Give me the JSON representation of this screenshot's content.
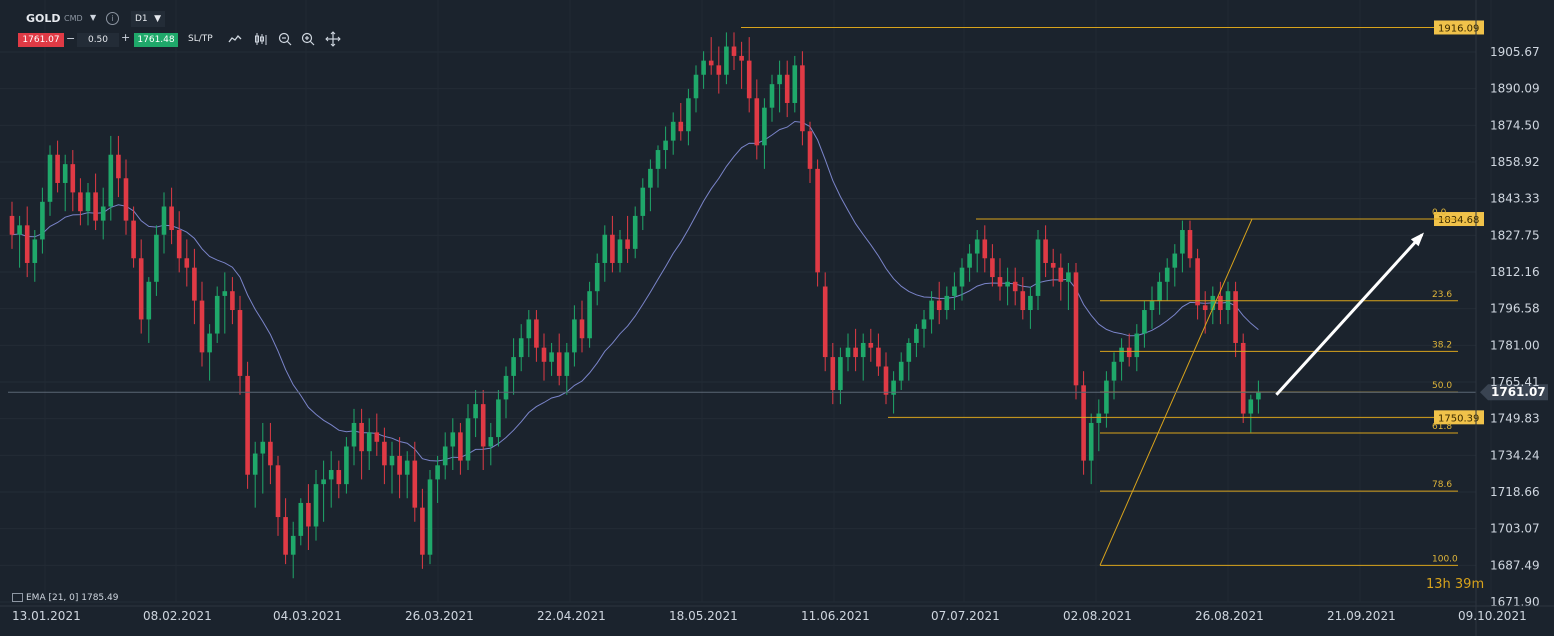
{
  "header": {
    "symbol": "GOLD",
    "product_type": "CMD",
    "timeframe": "D1",
    "sell_price": "1761.07",
    "spread": "0.50",
    "buy_price": "1761.48",
    "sltp_label": "SL/TP",
    "tools": [
      "line-chart-icon",
      "candles-icon",
      "zoom-out-icon",
      "zoom-in-icon",
      "move-icon"
    ]
  },
  "indicator": {
    "label": "EMA [21, 0] 1785.49"
  },
  "countdown": "13h 39m",
  "colors": {
    "up": "#1fa86a",
    "down": "#e03a45",
    "ema": "#7a84c9",
    "fib": "#d8a31c",
    "arrow": "#ffffff",
    "bg": "#1b232d"
  },
  "chart_data": {
    "type": "candlestick",
    "symbol": "GOLD",
    "timeframe": "D1",
    "y_ticks": [
      "1905.67",
      "1890.09",
      "1874.50",
      "1858.92",
      "1843.33",
      "1827.75",
      "1812.16",
      "1796.58",
      "1781.00",
      "1765.41",
      "1749.83",
      "1734.24",
      "1718.66",
      "1703.07",
      "1687.49",
      "1671.90"
    ],
    "y_range": [
      1671.9,
      1922
    ],
    "x_ticks": [
      "13.01.2021",
      "08.02.2021",
      "04.03.2021",
      "26.03.2021",
      "22.04.2021",
      "18.05.2021",
      "11.06.2021",
      "07.07.2021",
      "02.08.2021",
      "26.08.2021",
      "21.09.2021",
      "09.10.2021"
    ],
    "current_price": "1761.07",
    "levels": [
      {
        "label": "1916.09",
        "value": 1916.09
      },
      {
        "label": "1834.68",
        "value": 1834.68
      },
      {
        "label": "1750.39",
        "value": 1750.39
      }
    ],
    "fibonacci": {
      "high": 1834.68,
      "low": 1687.49,
      "levels": [
        {
          "label": "0.0",
          "value": 1834.68
        },
        {
          "label": "23.6",
          "value": 1799.94
        },
        {
          "label": "38.2",
          "value": 1778.45
        },
        {
          "label": "50.0",
          "value": 1761.09
        },
        {
          "label": "61.8",
          "value": 1743.72
        },
        {
          "label": "78.6",
          "value": 1719.0
        },
        {
          "label": "100.0",
          "value": 1687.49
        }
      ]
    },
    "ema": {
      "period": 21,
      "last_value": 1785.49
    },
    "candles": [
      [
        1836,
        1842,
        1822,
        1828
      ],
      [
        1828,
        1836,
        1814,
        1832
      ],
      [
        1832,
        1840,
        1810,
        1816
      ],
      [
        1816,
        1830,
        1808,
        1826
      ],
      [
        1826,
        1848,
        1820,
        1842
      ],
      [
        1842,
        1866,
        1836,
        1862
      ],
      [
        1862,
        1868,
        1846,
        1850
      ],
      [
        1850,
        1862,
        1838,
        1858
      ],
      [
        1858,
        1864,
        1838,
        1846
      ],
      [
        1846,
        1852,
        1832,
        1838
      ],
      [
        1838,
        1850,
        1832,
        1846
      ],
      [
        1846,
        1854,
        1830,
        1834
      ],
      [
        1834,
        1848,
        1826,
        1840
      ],
      [
        1840,
        1870,
        1834,
        1862
      ],
      [
        1862,
        1870,
        1844,
        1852
      ],
      [
        1852,
        1860,
        1828,
        1834
      ],
      [
        1834,
        1840,
        1814,
        1818
      ],
      [
        1818,
        1826,
        1786,
        1792
      ],
      [
        1792,
        1810,
        1782,
        1808
      ],
      [
        1808,
        1832,
        1802,
        1828
      ],
      [
        1828,
        1846,
        1820,
        1840
      ],
      [
        1840,
        1848,
        1824,
        1830
      ],
      [
        1830,
        1838,
        1812,
        1818
      ],
      [
        1818,
        1826,
        1806,
        1814
      ],
      [
        1814,
        1822,
        1790,
        1800
      ],
      [
        1800,
        1808,
        1772,
        1778
      ],
      [
        1778,
        1790,
        1766,
        1786
      ],
      [
        1786,
        1806,
        1782,
        1802
      ],
      [
        1802,
        1812,
        1786,
        1804
      ],
      [
        1804,
        1810,
        1790,
        1796
      ],
      [
        1796,
        1802,
        1760,
        1768
      ],
      [
        1768,
        1774,
        1720,
        1726
      ],
      [
        1726,
        1740,
        1712,
        1735
      ],
      [
        1735,
        1748,
        1718,
        1740
      ],
      [
        1740,
        1748,
        1722,
        1730
      ],
      [
        1730,
        1734,
        1700,
        1708
      ],
      [
        1708,
        1716,
        1688,
        1692
      ],
      [
        1692,
        1706,
        1682,
        1700
      ],
      [
        1700,
        1716,
        1696,
        1714
      ],
      [
        1714,
        1722,
        1694,
        1704
      ],
      [
        1704,
        1728,
        1698,
        1722
      ],
      [
        1722,
        1732,
        1706,
        1724
      ],
      [
        1724,
        1736,
        1712,
        1728
      ],
      [
        1728,
        1732,
        1716,
        1722
      ],
      [
        1722,
        1742,
        1718,
        1738
      ],
      [
        1738,
        1754,
        1730,
        1748
      ],
      [
        1748,
        1754,
        1724,
        1736
      ],
      [
        1736,
        1750,
        1728,
        1744
      ],
      [
        1744,
        1752,
        1734,
        1740
      ],
      [
        1740,
        1746,
        1722,
        1730
      ],
      [
        1730,
        1740,
        1718,
        1734
      ],
      [
        1734,
        1742,
        1716,
        1726
      ],
      [
        1726,
        1736,
        1716,
        1732
      ],
      [
        1732,
        1740,
        1706,
        1712
      ],
      [
        1712,
        1720,
        1686,
        1692
      ],
      [
        1692,
        1728,
        1688,
        1724
      ],
      [
        1724,
        1734,
        1714,
        1730
      ],
      [
        1730,
        1744,
        1724,
        1738
      ],
      [
        1738,
        1750,
        1728,
        1744
      ],
      [
        1744,
        1748,
        1726,
        1732
      ],
      [
        1732,
        1756,
        1728,
        1750
      ],
      [
        1750,
        1762,
        1742,
        1756
      ],
      [
        1756,
        1762,
        1728,
        1738
      ],
      [
        1738,
        1748,
        1730,
        1742
      ],
      [
        1742,
        1762,
        1738,
        1758
      ],
      [
        1758,
        1772,
        1750,
        1768
      ],
      [
        1768,
        1784,
        1760,
        1776
      ],
      [
        1776,
        1790,
        1770,
        1784
      ],
      [
        1784,
        1796,
        1776,
        1792
      ],
      [
        1792,
        1796,
        1774,
        1780
      ],
      [
        1780,
        1786,
        1766,
        1774
      ],
      [
        1774,
        1782,
        1768,
        1778
      ],
      [
        1778,
        1786,
        1764,
        1768
      ],
      [
        1768,
        1782,
        1760,
        1778
      ],
      [
        1778,
        1798,
        1772,
        1792
      ],
      [
        1792,
        1800,
        1778,
        1784
      ],
      [
        1784,
        1808,
        1780,
        1804
      ],
      [
        1804,
        1820,
        1798,
        1816
      ],
      [
        1816,
        1832,
        1808,
        1828
      ],
      [
        1828,
        1836,
        1812,
        1816
      ],
      [
        1816,
        1830,
        1812,
        1826
      ],
      [
        1826,
        1836,
        1816,
        1822
      ],
      [
        1822,
        1840,
        1818,
        1836
      ],
      [
        1836,
        1852,
        1830,
        1848
      ],
      [
        1848,
        1860,
        1838,
        1856
      ],
      [
        1856,
        1866,
        1848,
        1864
      ],
      [
        1864,
        1874,
        1856,
        1868
      ],
      [
        1868,
        1880,
        1862,
        1876
      ],
      [
        1876,
        1884,
        1868,
        1872
      ],
      [
        1872,
        1890,
        1866,
        1886
      ],
      [
        1886,
        1900,
        1880,
        1896
      ],
      [
        1896,
        1906,
        1890,
        1902
      ],
      [
        1902,
        1912,
        1896,
        1900
      ],
      [
        1900,
        1908,
        1888,
        1896
      ],
      [
        1896,
        1914,
        1892,
        1908
      ],
      [
        1908,
        1914,
        1898,
        1904
      ],
      [
        1904,
        1910,
        1890,
        1902
      ],
      [
        1902,
        1912,
        1880,
        1886
      ],
      [
        1886,
        1894,
        1860,
        1866
      ],
      [
        1866,
        1886,
        1856,
        1882
      ],
      [
        1882,
        1896,
        1876,
        1892
      ],
      [
        1892,
        1902,
        1880,
        1896
      ],
      [
        1896,
        1902,
        1878,
        1884
      ],
      [
        1884,
        1904,
        1880,
        1900
      ],
      [
        1900,
        1906,
        1866,
        1872
      ],
      [
        1872,
        1876,
        1850,
        1856
      ],
      [
        1856,
        1860,
        1806,
        1812
      ],
      [
        1806,
        1812,
        1770,
        1776
      ],
      [
        1776,
        1782,
        1756,
        1762
      ],
      [
        1762,
        1780,
        1756,
        1776
      ],
      [
        1776,
        1786,
        1770,
        1780
      ],
      [
        1780,
        1788,
        1770,
        1776
      ],
      [
        1776,
        1786,
        1766,
        1782
      ],
      [
        1782,
        1788,
        1774,
        1780
      ],
      [
        1780,
        1786,
        1768,
        1772
      ],
      [
        1772,
        1778,
        1756,
        1760
      ],
      [
        1760,
        1770,
        1752,
        1766
      ],
      [
        1766,
        1778,
        1762,
        1774
      ],
      [
        1774,
        1784,
        1766,
        1782
      ],
      [
        1782,
        1790,
        1776,
        1788
      ],
      [
        1788,
        1796,
        1780,
        1792
      ],
      [
        1792,
        1804,
        1786,
        1800
      ],
      [
        1800,
        1808,
        1790,
        1796
      ],
      [
        1796,
        1806,
        1792,
        1802
      ],
      [
        1802,
        1812,
        1796,
        1806
      ],
      [
        1806,
        1818,
        1800,
        1814
      ],
      [
        1814,
        1824,
        1808,
        1820
      ],
      [
        1820,
        1830,
        1812,
        1826
      ],
      [
        1826,
        1832,
        1812,
        1818
      ],
      [
        1818,
        1824,
        1806,
        1810
      ],
      [
        1810,
        1818,
        1800,
        1806
      ],
      [
        1806,
        1814,
        1798,
        1808
      ],
      [
        1808,
        1814,
        1798,
        1804
      ],
      [
        1804,
        1810,
        1792,
        1796
      ],
      [
        1796,
        1806,
        1788,
        1802
      ],
      [
        1802,
        1830,
        1796,
        1826
      ],
      [
        1826,
        1832,
        1810,
        1816
      ],
      [
        1816,
        1822,
        1806,
        1814
      ],
      [
        1814,
        1820,
        1800,
        1808
      ],
      [
        1808,
        1816,
        1796,
        1812
      ],
      [
        1812,
        1816,
        1758,
        1764
      ],
      [
        1764,
        1770,
        1726,
        1732
      ],
      [
        1732,
        1752,
        1722,
        1748
      ],
      [
        1748,
        1758,
        1736,
        1752
      ],
      [
        1752,
        1770,
        1746,
        1766
      ],
      [
        1766,
        1778,
        1758,
        1774
      ],
      [
        1774,
        1784,
        1766,
        1780
      ],
      [
        1780,
        1786,
        1772,
        1776
      ],
      [
        1776,
        1790,
        1770,
        1786
      ],
      [
        1786,
        1800,
        1780,
        1796
      ],
      [
        1796,
        1806,
        1788,
        1800
      ],
      [
        1800,
        1812,
        1794,
        1808
      ],
      [
        1808,
        1818,
        1800,
        1814
      ],
      [
        1814,
        1824,
        1806,
        1820
      ],
      [
        1820,
        1834,
        1812,
        1830
      ],
      [
        1830,
        1834,
        1814,
        1818
      ],
      [
        1818,
        1822,
        1792,
        1798
      ],
      [
        1798,
        1804,
        1786,
        1796
      ],
      [
        1796,
        1806,
        1790,
        1802
      ],
      [
        1802,
        1808,
        1790,
        1796
      ],
      [
        1796,
        1808,
        1790,
        1804
      ],
      [
        1804,
        1808,
        1776,
        1782
      ],
      [
        1782,
        1786,
        1748,
        1752
      ],
      [
        1752,
        1760,
        1744,
        1758
      ],
      [
        1758,
        1766,
        1752,
        1761.07
      ]
    ]
  }
}
